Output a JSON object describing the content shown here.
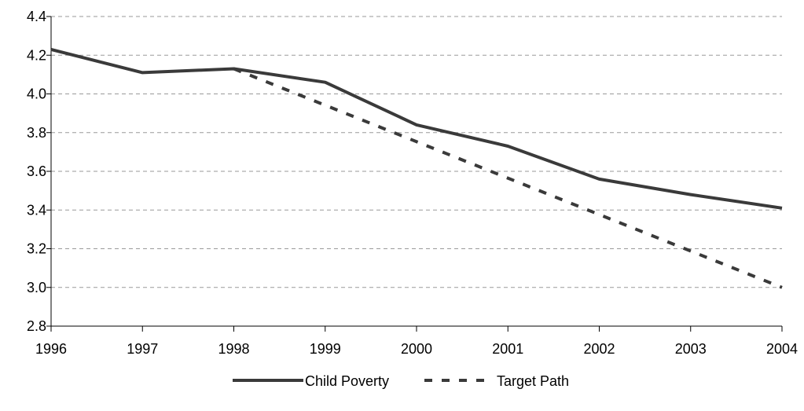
{
  "chart_data": {
    "type": "line",
    "title": "",
    "xlabel": "",
    "ylabel": "",
    "x": [
      1996,
      1997,
      1998,
      1999,
      2000,
      2001,
      2002,
      2003,
      2004
    ],
    "x_tick_labels": [
      "1996",
      "1997",
      "1998",
      "1999",
      "2000",
      "2001",
      "2002",
      "2003",
      "2004"
    ],
    "xlim": [
      1996,
      2004
    ],
    "ylim": [
      2.8,
      4.4
    ],
    "y_ticks": [
      2.8,
      3.0,
      3.2,
      3.4,
      3.6,
      3.8,
      4.0,
      4.2,
      4.4
    ],
    "y_tick_labels": [
      "2.8",
      "3.0",
      "3.2",
      "3.4",
      "3.6",
      "3.8",
      "4.0",
      "4.2",
      "4.4"
    ],
    "grid": "horizontal dashed",
    "legend_position": "bottom",
    "series": [
      {
        "name": "Child Poverty",
        "style": "solid",
        "color": "#3a3a3a",
        "x": [
          1996,
          1997,
          1998,
          1999,
          2000,
          2001,
          2002,
          2003,
          2004
        ],
        "values": [
          4.23,
          4.11,
          4.13,
          4.06,
          3.84,
          3.73,
          3.56,
          3.48,
          3.41
        ]
      },
      {
        "name": "Target Path",
        "style": "dashed",
        "color": "#3a3a3a",
        "x": [
          1998,
          2004
        ],
        "values": [
          4.13,
          3.0
        ]
      }
    ]
  }
}
